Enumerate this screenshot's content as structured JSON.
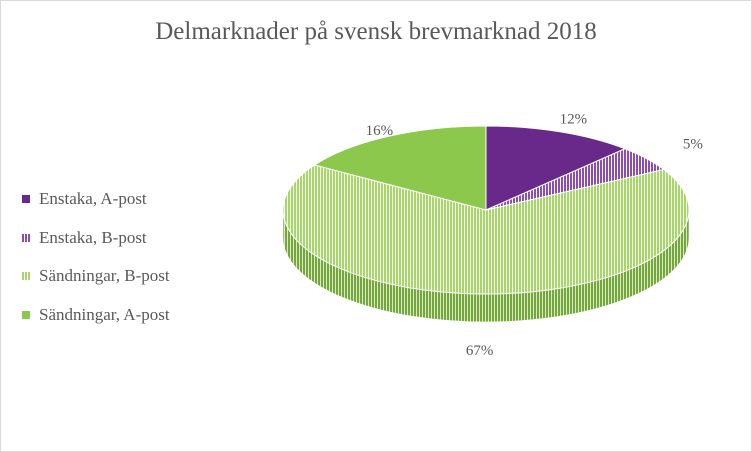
{
  "chart_data": {
    "type": "pie",
    "title": "Delmarknader på svensk brevmarknad 2018",
    "categories": [
      "Enstaka, A-post",
      "Enstaka, B-post",
      "Sändningar, B-post",
      "Sändningar, A-post"
    ],
    "values": [
      12,
      5,
      67,
      16
    ],
    "data_labels": [
      "12%",
      "5%",
      "67%",
      "16%"
    ],
    "legend_position": "left",
    "three_d": true,
    "colors": [
      "#68298a",
      "#8e4bb0",
      "#a8d56c",
      "#8cc84b"
    ],
    "patterns": [
      "solid",
      "vertical-stripes",
      "vertical-stripes",
      "solid"
    ]
  }
}
